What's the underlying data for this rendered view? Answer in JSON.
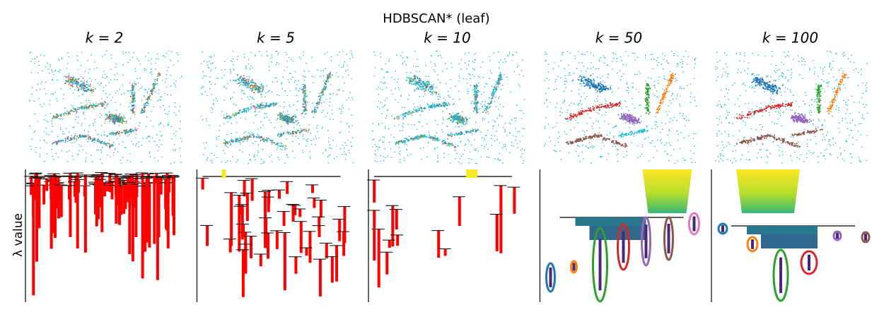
{
  "title": "HDBSCAN* (leaf)",
  "panels": [
    {
      "label": "k = 2"
    },
    {
      "label": "k = 5"
    },
    {
      "label": "k = 10"
    },
    {
      "label": "k = 50"
    },
    {
      "label": "k = 100"
    }
  ],
  "y_label": "λ value"
}
